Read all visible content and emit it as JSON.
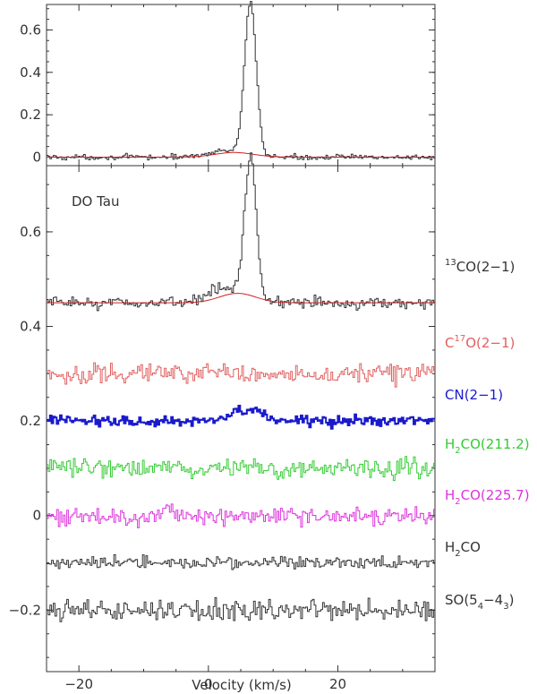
{
  "chart_data": [
    {
      "panel": "top",
      "type": "line",
      "step": true,
      "xlim": [
        -25,
        35
      ],
      "ylim": [
        -0.04,
        0.72
      ],
      "yticks": [
        0,
        0.2,
        0.4,
        0.6
      ],
      "ytick_labels": [
        "0",
        "0.2",
        "0.4",
        "0.6"
      ],
      "series": [
        {
          "id": "spectrum",
          "color": "#333333",
          "noise": 0.012,
          "offset": 0,
          "peak": {
            "center": 6.5,
            "height": 0.71,
            "width": 0.9
          },
          "shoulder": {
            "center": 3,
            "height": 0.03,
            "width": 3
          }
        },
        {
          "id": "fit",
          "color": "#cc2222",
          "smooth": true,
          "offset": 0,
          "peak": {
            "center": 4,
            "height": 0.022,
            "width": 3
          }
        }
      ]
    },
    {
      "panel": "bottom",
      "type": "line",
      "step": true,
      "xlim": [
        -25,
        35
      ],
      "ylim": [
        -0.33,
        0.74
      ],
      "xticks": [
        -20,
        0,
        20
      ],
      "xtick_labels": [
        "−20",
        "0",
        "20"
      ],
      "yticks": [
        -0.2,
        0,
        0.2,
        0.4,
        0.6
      ],
      "ytick_labels": [
        "−0.2",
        "0",
        "0.2",
        "0.4",
        "0.6"
      ],
      "xlabel": "Velocity (km/s)",
      "annotation": "DO Tau",
      "series": [
        {
          "id": "co13",
          "label_main": "CO(2−1)",
          "label_sup": "13",
          "label_prefix": "",
          "label_rest": "",
          "color": "#333333",
          "offset": 0.45,
          "noise": 0.012,
          "peak": {
            "center": 6.5,
            "height": 0.3,
            "width": 0.9
          },
          "shoulder": {
            "center": 3,
            "height": 0.03,
            "width": 3
          }
        },
        {
          "id": "co13_fit",
          "color": "#cc2222",
          "smooth": true,
          "offset": 0.45,
          "peak": {
            "center": 4.5,
            "height": 0.02,
            "width": 2.8
          }
        },
        {
          "id": "c17o",
          "color": "#e06060",
          "offset": 0.3,
          "noise": 0.02
        },
        {
          "id": "cn",
          "color": "#1a1acc",
          "offset": 0.2,
          "noise": 0.011,
          "peak": {
            "center": 6,
            "height": 0.02,
            "width": 2.5
          },
          "thick": true
        },
        {
          "id": "h2co211",
          "color": "#33cc33",
          "offset": 0.1,
          "noise": 0.02
        },
        {
          "id": "h2co225",
          "color": "#dd33dd",
          "offset": 0.0,
          "noise": 0.02
        },
        {
          "id": "h2co",
          "color": "#333333",
          "offset": -0.1,
          "noise": 0.013
        },
        {
          "id": "so",
          "color": "#333333",
          "offset": -0.2,
          "noise": 0.02
        }
      ]
    }
  ],
  "labels": {
    "co13": {
      "pre": "",
      "sup": "13",
      "main": "CO(2−1)",
      "color": "#333333"
    },
    "c17o": {
      "pre": "C",
      "sup": "17",
      "main": "O(2−1)",
      "color": "#e06060"
    },
    "cn": {
      "main": "CN(2−1)",
      "color": "#1a1acc"
    },
    "h2co211": {
      "pre": "H",
      "sub": "2",
      "main": "CO(211.2)",
      "color": "#33cc33"
    },
    "h2co225": {
      "pre": "H",
      "sub": "2",
      "main": "CO(225.7)",
      "color": "#dd33dd"
    },
    "h2co": {
      "pre": "H",
      "sub": "2",
      "main": "CO",
      "color": "#333333"
    },
    "so": {
      "pre": "SO(5",
      "sub1": "4",
      "mid": "−4",
      "sub2": "3",
      "post": ")",
      "color": "#333333"
    }
  }
}
